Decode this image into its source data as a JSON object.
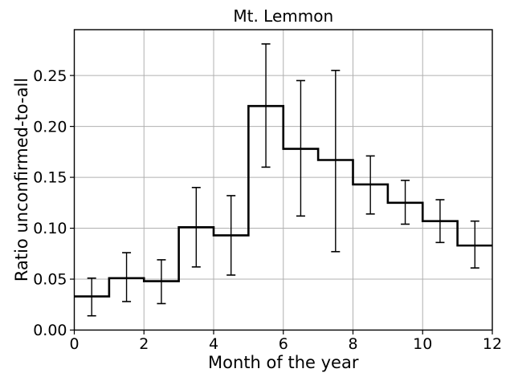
{
  "figure": {
    "background": "#ffffff"
  },
  "chart_data": {
    "type": "step-histogram",
    "title": "Mt. Lemmon",
    "xlabel": "Month of the year",
    "ylabel": "Ratio unconfirmed-to-all",
    "xlim": [
      0,
      12
    ],
    "ylim": [
      0,
      0.295
    ],
    "x_ticks": [
      0,
      2,
      4,
      6,
      8,
      10,
      12
    ],
    "x_tick_labels": [
      "0",
      "2",
      "4",
      "6",
      "8",
      "10",
      "12"
    ],
    "y_ticks": [
      0.0,
      0.05,
      0.1,
      0.15,
      0.2,
      0.25
    ],
    "y_tick_labels": [
      "0.00",
      "0.05",
      "0.10",
      "0.15",
      "0.20",
      "0.25"
    ],
    "grid": true,
    "grid_color": "#b0b0b0",
    "line_color": "#000000",
    "background_color": "#ffffff",
    "bin_edges": [
      0,
      1,
      2,
      3,
      4,
      5,
      6,
      7,
      8,
      9,
      10,
      11,
      12
    ],
    "bin_centers": [
      0.5,
      1.5,
      2.5,
      3.5,
      4.5,
      5.5,
      6.5,
      7.5,
      8.5,
      9.5,
      10.5,
      11.5
    ],
    "values": [
      0.033,
      0.051,
      0.048,
      0.101,
      0.093,
      0.22,
      0.178,
      0.167,
      0.143,
      0.125,
      0.107,
      0.083
    ],
    "error_low": [
      0.014,
      0.028,
      0.026,
      0.062,
      0.054,
      0.16,
      0.112,
      0.077,
      0.114,
      0.104,
      0.086,
      0.061
    ],
    "error_high": [
      0.051,
      0.076,
      0.069,
      0.14,
      0.132,
      0.281,
      0.245,
      0.255,
      0.171,
      0.147,
      0.128,
      0.107
    ]
  }
}
